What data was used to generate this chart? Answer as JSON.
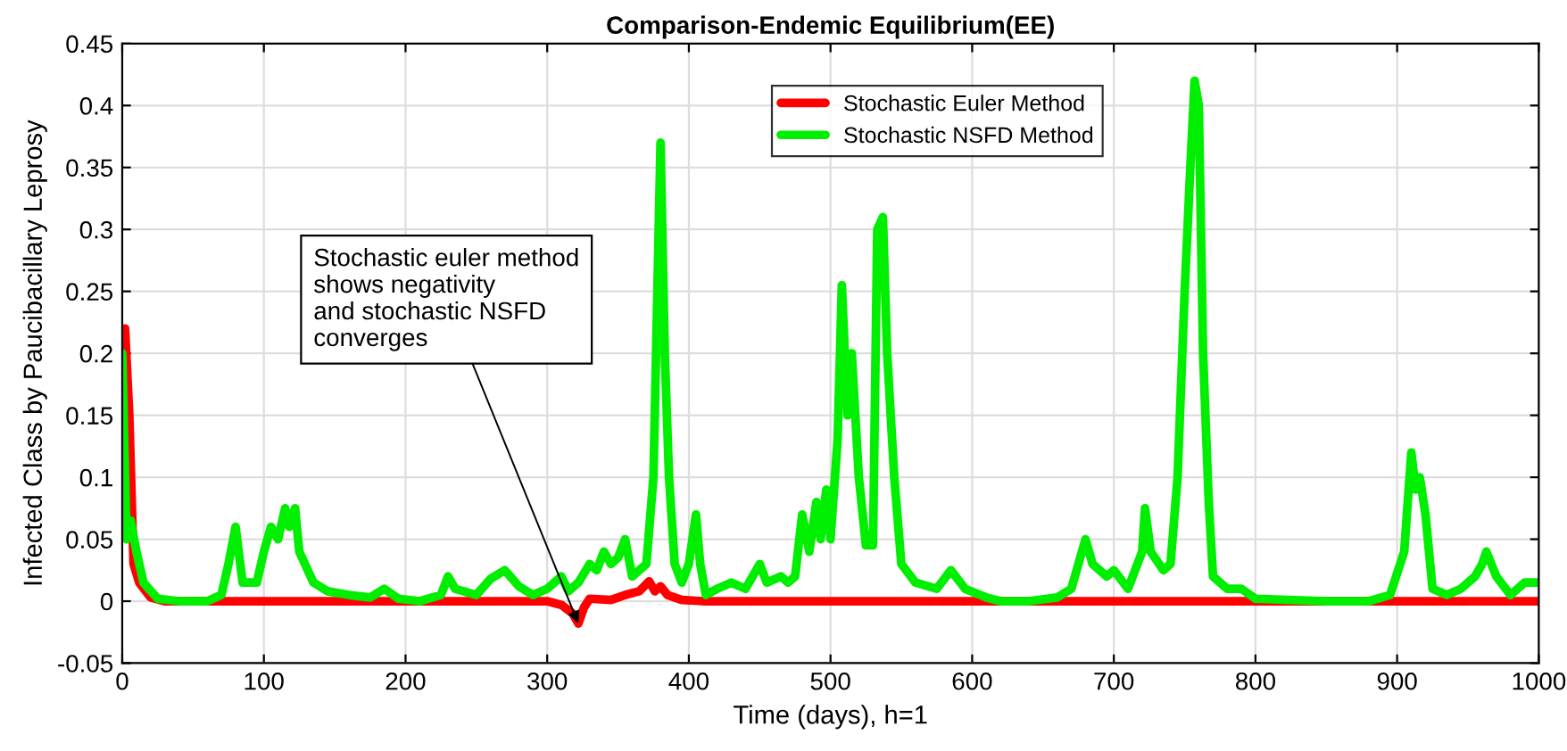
{
  "chart_data": {
    "type": "line",
    "title": "Comparison-Endemic Equilibrium(EE)",
    "xlabel": "Time (days), h=1",
    "ylabel": "Infected Class by Paucibacillary Leprosy",
    "xlim": [
      0,
      1000
    ],
    "ylim": [
      -0.05,
      0.45
    ],
    "xticks": [
      0,
      100,
      200,
      300,
      400,
      500,
      600,
      700,
      800,
      900,
      1000
    ],
    "yticks": [
      -0.05,
      0,
      0.05,
      0.1,
      0.15,
      0.2,
      0.25,
      0.3,
      0.35,
      0.4,
      0.45
    ],
    "grid": true,
    "legend": "top right",
    "line_style": "solid",
    "marker": "none",
    "annotations": [
      {
        "text": "Stochastic euler method\nshows negativity\nand stochastic NSFD\nconverges",
        "x": 322,
        "y": -0.018
      }
    ],
    "series": [
      {
        "name": "Stochastic Euler Method",
        "color": "#ff0000",
        "x": [
          0,
          2,
          5,
          8,
          12,
          20,
          30,
          300,
          310,
          318,
          322,
          326,
          330,
          345,
          355,
          365,
          372,
          376,
          380,
          385,
          395,
          410,
          1000
        ],
        "values": [
          0.2,
          0.22,
          0.15,
          0.03,
          0.015,
          0.003,
          0,
          0,
          -0.003,
          -0.01,
          -0.018,
          -0.005,
          0.002,
          0.001,
          0.005,
          0.008,
          0.016,
          0.008,
          0.012,
          0.005,
          0.001,
          0,
          0
        ]
      },
      {
        "name": "Stochastic NSFD Method",
        "color": "#00ee00",
        "x": [
          0,
          3,
          6,
          10,
          15,
          25,
          40,
          60,
          70,
          75,
          80,
          85,
          95,
          100,
          105,
          110,
          115,
          118,
          122,
          125,
          135,
          145,
          160,
          175,
          185,
          195,
          210,
          225,
          230,
          235,
          250,
          260,
          270,
          280,
          290,
          300,
          310,
          315,
          322,
          330,
          335,
          340,
          345,
          350,
          355,
          360,
          370,
          375,
          380,
          383,
          386,
          390,
          395,
          400,
          405,
          408,
          412,
          420,
          430,
          440,
          450,
          455,
          465,
          470,
          475,
          480,
          485,
          490,
          493,
          497,
          500,
          505,
          508,
          512,
          515,
          520,
          525,
          530,
          533,
          537,
          540,
          545,
          550,
          560,
          575,
          585,
          595,
          610,
          620,
          640,
          660,
          670,
          675,
          680,
          685,
          695,
          700,
          710,
          720,
          722,
          726,
          735,
          740,
          745,
          750,
          754,
          757,
          760,
          763,
          767,
          770,
          780,
          790,
          800,
          850,
          880,
          895,
          905,
          910,
          913,
          916,
          920,
          925,
          935,
          945,
          955,
          960,
          963,
          970,
          980,
          990,
          1000
        ],
        "values": [
          0.2,
          0.05,
          0.065,
          0.04,
          0.015,
          0.002,
          0,
          0,
          0.005,
          0.03,
          0.06,
          0.015,
          0.015,
          0.04,
          0.06,
          0.05,
          0.075,
          0.06,
          0.075,
          0.04,
          0.015,
          0.008,
          0.005,
          0.003,
          0.01,
          0.002,
          0,
          0.005,
          0.02,
          0.01,
          0.005,
          0.018,
          0.025,
          0.012,
          0.005,
          0.01,
          0.02,
          0.008,
          0.015,
          0.03,
          0.025,
          0.04,
          0.03,
          0.035,
          0.05,
          0.02,
          0.03,
          0.1,
          0.37,
          0.2,
          0.1,
          0.03,
          0.015,
          0.03,
          0.07,
          0.03,
          0.005,
          0.01,
          0.015,
          0.01,
          0.03,
          0.015,
          0.02,
          0.015,
          0.02,
          0.07,
          0.04,
          0.08,
          0.05,
          0.09,
          0.05,
          0.13,
          0.255,
          0.15,
          0.2,
          0.1,
          0.045,
          0.045,
          0.3,
          0.31,
          0.2,
          0.1,
          0.03,
          0.015,
          0.01,
          0.025,
          0.01,
          0.003,
          0,
          0,
          0.003,
          0.01,
          0.03,
          0.05,
          0.03,
          0.02,
          0.025,
          0.01,
          0.04,
          0.075,
          0.04,
          0.025,
          0.03,
          0.1,
          0.25,
          0.35,
          0.42,
          0.4,
          0.2,
          0.08,
          0.02,
          0.01,
          0.01,
          0.002,
          0,
          0,
          0.005,
          0.04,
          0.12,
          0.09,
          0.1,
          0.07,
          0.01,
          0.005,
          0.01,
          0.02,
          0.03,
          0.04,
          0.02,
          0.005,
          0.015,
          0.015
        ]
      }
    ]
  }
}
